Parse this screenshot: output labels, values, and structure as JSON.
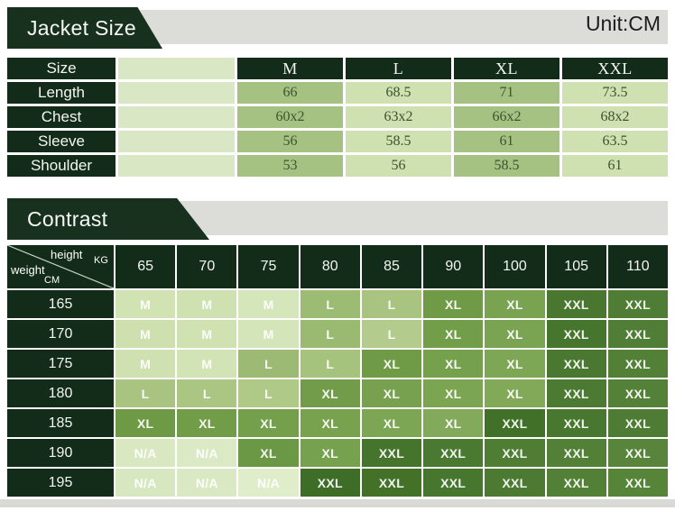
{
  "page": {
    "unit_label": "Unit:CM"
  },
  "colors": {
    "dark_green_cell": "#132c1a",
    "banner_green": "#17311e",
    "gray_bar": "#dcdcd9",
    "empty_column_light": "#d9e7c5",
    "value_column_medium": "#a6c283",
    "value_column_light": "#cfe0b1",
    "value_text": "#3c5330",
    "bottom_strip": "#d9d9d6"
  },
  "chart_data": [
    {
      "type": "table",
      "title": "Jacket Size",
      "unit": "CM",
      "corner_label": "Size",
      "size_columns": [
        "M",
        "L",
        "XL",
        "XXL"
      ],
      "rows": [
        {
          "label": "Length",
          "values": [
            "66",
            "68.5",
            "71",
            "73.5"
          ]
        },
        {
          "label": "Chest",
          "values": [
            "60x2",
            "63x2",
            "66x2",
            "68x2"
          ]
        },
        {
          "label": "Sleeve",
          "values": [
            "56",
            "58.5",
            "61",
            "63.5"
          ]
        },
        {
          "label": "Shoulder",
          "values": [
            "53",
            "56",
            "58.5",
            "61"
          ]
        }
      ]
    },
    {
      "type": "table",
      "title": "Contrast",
      "corner": {
        "top_label": "height",
        "top_unit": "KG",
        "side_label": "weight",
        "side_unit": "CM"
      },
      "columns": [
        "65",
        "70",
        "75",
        "80",
        "85",
        "90",
        "100",
        "105",
        "110"
      ],
      "rows": [
        {
          "label": "165",
          "cells": [
            {
              "v": "M",
              "bg": "#d1e3b3"
            },
            {
              "v": "M",
              "bg": "#cfe1b1"
            },
            {
              "v": "M",
              "bg": "#d5e6bb"
            },
            {
              "v": "L",
              "bg": "#9dbc73"
            },
            {
              "v": "L",
              "bg": "#a8c480"
            },
            {
              "v": "XL",
              "bg": "#6f9b46"
            },
            {
              "v": "XL",
              "bg": "#79a351"
            },
            {
              "v": "XXL",
              "bg": "#49772f"
            },
            {
              "v": "XXL",
              "bg": "#507d35"
            }
          ]
        },
        {
          "label": "170",
          "cells": [
            {
              "v": "M",
              "bg": "#cee0ae"
            },
            {
              "v": "M",
              "bg": "#d0e2b2"
            },
            {
              "v": "M",
              "bg": "#d4e5b9"
            },
            {
              "v": "L",
              "bg": "#9bba71"
            },
            {
              "v": "L",
              "bg": "#b3cc8e"
            },
            {
              "v": "XL",
              "bg": "#729e49"
            },
            {
              "v": "XL",
              "bg": "#7ba452"
            },
            {
              "v": "XXL",
              "bg": "#46752d"
            },
            {
              "v": "XXL",
              "bg": "#517e36"
            }
          ]
        },
        {
          "label": "175",
          "cells": [
            {
              "v": "M",
              "bg": "#cfe1b0"
            },
            {
              "v": "M",
              "bg": "#d2e3b5"
            },
            {
              "v": "L",
              "bg": "#9cba73"
            },
            {
              "v": "L",
              "bg": "#a6c37e"
            },
            {
              "v": "XL",
              "bg": "#6f9b46"
            },
            {
              "v": "XL",
              "bg": "#75a04c"
            },
            {
              "v": "XL",
              "bg": "#7ea755"
            },
            {
              "v": "XXL",
              "bg": "#4a7830"
            },
            {
              "v": "XXL",
              "bg": "#528037"
            }
          ]
        },
        {
          "label": "180",
          "cells": [
            {
              "v": "L",
              "bg": "#a8c480"
            },
            {
              "v": "L",
              "bg": "#abc683"
            },
            {
              "v": "L",
              "bg": "#afc987"
            },
            {
              "v": "XL",
              "bg": "#729c4a"
            },
            {
              "v": "XL",
              "bg": "#77a14e"
            },
            {
              "v": "XL",
              "bg": "#7ca551"
            },
            {
              "v": "XL",
              "bg": "#81a957"
            },
            {
              "v": "XXL",
              "bg": "#4c7a32"
            },
            {
              "v": "XXL",
              "bg": "#548138"
            }
          ]
        },
        {
          "label": "185",
          "cells": [
            {
              "v": "XL",
              "bg": "#6e9a45"
            },
            {
              "v": "XL",
              "bg": "#719d48"
            },
            {
              "v": "XL",
              "bg": "#75a04b"
            },
            {
              "v": "XL",
              "bg": "#79a24f"
            },
            {
              "v": "XL",
              "bg": "#7da654"
            },
            {
              "v": "XL",
              "bg": "#83aa5a"
            },
            {
              "v": "XXL",
              "bg": "#417128"
            },
            {
              "v": "XXL",
              "bg": "#48772f"
            },
            {
              "v": "XXL",
              "bg": "#4e7c34"
            }
          ]
        },
        {
          "label": "190",
          "cells": [
            {
              "v": "N/A",
              "bg": "#d9e8c1"
            },
            {
              "v": "N/A",
              "bg": "#dbe9c4"
            },
            {
              "v": "XL",
              "bg": "#6b9844"
            },
            {
              "v": "XL",
              "bg": "#76a14e"
            },
            {
              "v": "XXL",
              "bg": "#45742c"
            },
            {
              "v": "XXL",
              "bg": "#4a7931"
            },
            {
              "v": "XXL",
              "bg": "#4f7d34"
            },
            {
              "v": "XXL",
              "bg": "#538037"
            },
            {
              "v": "XXL",
              "bg": "#58853b"
            }
          ]
        },
        {
          "label": "195",
          "cells": [
            {
              "v": "N/A",
              "bg": "#d7e7bf"
            },
            {
              "v": "N/A",
              "bg": "#dae9c3"
            },
            {
              "v": "N/A",
              "bg": "#dfedca"
            },
            {
              "v": "XXL",
              "bg": "#3d6d26"
            },
            {
              "v": "XXL",
              "bg": "#437128"
            },
            {
              "v": "XXL",
              "bg": "#47762e"
            },
            {
              "v": "XXL",
              "bg": "#4c7a32"
            },
            {
              "v": "XXL",
              "bg": "#518036"
            },
            {
              "v": "XXL",
              "bg": "#568439"
            }
          ]
        }
      ]
    }
  ]
}
